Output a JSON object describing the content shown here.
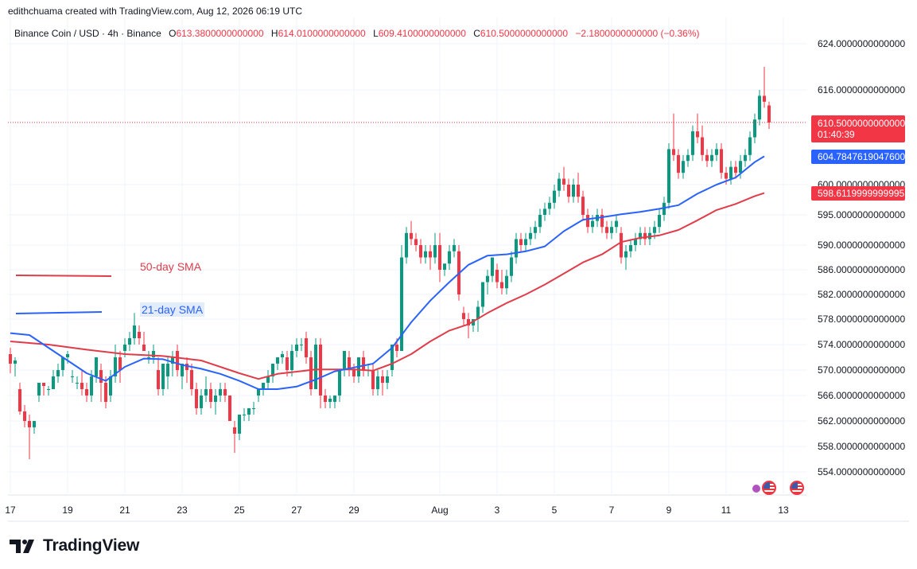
{
  "header": {
    "credit": "edithchuama created with TradingView.com, Aug 12, 2026 06:19 UTC"
  },
  "ohlc": {
    "symbol": "Binance Coin / USD · 4h · Binance",
    "open_label": "O",
    "open": "613.3800000000000",
    "high_label": "H",
    "high": "614.0100000000000",
    "low_label": "L",
    "low": "609.4100000000000",
    "close_label": "C",
    "close": "610.5000000000000",
    "change": "−2.1800000000000 (−0.36%)"
  },
  "legend": {
    "sma50_label": "50-day SMA",
    "sma21_label": "21-day SMA"
  },
  "price_tags": {
    "last_price": "610.5000000000000",
    "countdown": "01:40:39",
    "sma21_value": "604.7847619047600",
    "sma50_value": "598.6119999999995"
  },
  "branding": {
    "logo_text": "TradingView"
  },
  "colors": {
    "up": "#089981",
    "down": "#f23645",
    "sma21": "#2962ff",
    "sma50": "#e03c4a",
    "grid": "#f0f3fa",
    "last_price_line": "#f23645"
  },
  "icons": [
    "us-flag-icon",
    "us-flag-icon",
    "tradingview-logo-icon"
  ],
  "chart_data": {
    "type": "candlestick",
    "y_ticks": [
      {
        "value": 624,
        "label": "624.0000000000000"
      },
      {
        "value": 616,
        "label": "616.0000000000000"
      },
      {
        "value": 600,
        "label": "600.0000000000000"
      },
      {
        "value": 595,
        "label": "595.0000000000000"
      },
      {
        "value": 590,
        "label": "590.0000000000000"
      },
      {
        "value": 586,
        "label": "586.0000000000000"
      },
      {
        "value": 582,
        "label": "582.0000000000000"
      },
      {
        "value": 578,
        "label": "578.0000000000000"
      },
      {
        "value": 574,
        "label": "574.0000000000000"
      },
      {
        "value": 570,
        "label": "570.0000000000000"
      },
      {
        "value": 566,
        "label": "566.0000000000000"
      },
      {
        "value": 562,
        "label": "562.0000000000000"
      },
      {
        "value": 558,
        "label": "558.0000000000000"
      },
      {
        "value": 554,
        "label": "554.0000000000000"
      }
    ],
    "x_ticks": [
      {
        "index": 0,
        "label": "17"
      },
      {
        "index": 12,
        "label": "19"
      },
      {
        "index": 24,
        "label": "21"
      },
      {
        "index": 36,
        "label": "23"
      },
      {
        "index": 48,
        "label": "25"
      },
      {
        "index": 60,
        "label": "27"
      },
      {
        "index": 72,
        "label": "29"
      },
      {
        "index": 90,
        "label": "Aug"
      },
      {
        "index": 102,
        "label": "3"
      },
      {
        "index": 114,
        "label": "5"
      },
      {
        "index": 126,
        "label": "7"
      },
      {
        "index": 138,
        "label": "9"
      },
      {
        "index": 150,
        "label": "11"
      },
      {
        "index": 162,
        "label": "13"
      }
    ],
    "candles": [
      [
        572.5,
        573.5,
        569.5,
        571
      ],
      [
        571,
        572,
        569,
        571.5
      ],
      [
        567,
        568,
        563,
        563.5
      ],
      [
        563.5,
        564.5,
        561,
        562
      ],
      [
        562,
        563,
        556,
        561
      ],
      [
        561,
        562,
        560,
        562
      ],
      [
        566,
        568,
        565,
        568
      ],
      [
        568,
        568,
        566,
        567.5
      ],
      [
        567,
        567.5,
        566,
        567
      ],
      [
        567,
        570,
        567,
        569
      ],
      [
        569,
        571,
        568,
        570
      ],
      [
        570,
        572,
        569,
        572
      ],
      [
        572,
        573,
        571,
        572.5
      ],
      [
        569,
        570,
        568,
        569
      ],
      [
        568,
        569,
        567,
        568
      ],
      [
        568,
        570,
        566,
        567
      ],
      [
        567,
        568,
        565,
        566
      ],
      [
        566,
        570,
        565,
        569
      ],
      [
        569,
        572,
        568,
        572
      ],
      [
        570,
        571,
        565,
        568
      ],
      [
        568,
        569,
        564,
        565
      ],
      [
        566,
        570,
        565,
        569
      ],
      [
        569,
        574,
        568,
        572
      ],
      [
        572,
        573,
        568,
        570
      ],
      [
        573,
        575,
        572,
        574
      ],
      [
        574,
        576,
        573,
        575
      ],
      [
        575,
        579,
        574,
        577
      ],
      [
        576,
        577,
        574,
        575
      ],
      [
        574,
        576,
        573,
        573
      ],
      [
        572,
        573,
        571,
        572
      ],
      [
        572,
        574,
        571,
        573
      ],
      [
        570,
        572,
        566,
        567
      ],
      [
        567,
        571,
        566,
        571
      ],
      [
        569,
        572,
        567,
        571
      ],
      [
        571,
        573,
        569,
        572
      ],
      [
        573,
        574,
        569,
        570
      ],
      [
        569,
        571,
        567,
        571
      ],
      [
        571,
        572,
        568,
        570
      ],
      [
        570,
        571,
        566,
        567
      ],
      [
        567,
        568,
        563,
        564
      ],
      [
        564,
        567,
        563,
        566
      ],
      [
        566,
        569,
        565,
        567
      ],
      [
        567,
        568,
        564,
        565
      ],
      [
        565,
        567,
        563,
        566
      ],
      [
        566,
        568,
        565,
        567
      ],
      [
        567,
        568,
        565,
        566
      ],
      [
        566,
        566,
        562,
        562
      ],
      [
        561,
        562,
        557,
        560
      ],
      [
        560,
        563,
        559,
        563
      ],
      [
        563,
        564,
        562,
        563
      ],
      [
        563,
        564,
        562,
        564
      ],
      [
        564,
        565,
        563,
        564
      ],
      [
        566,
        567,
        565,
        567
      ],
      [
        567,
        568,
        566,
        568
      ],
      [
        568,
        570,
        567,
        569
      ],
      [
        569,
        571,
        568,
        571
      ],
      [
        571,
        572,
        570,
        572
      ],
      [
        572,
        573,
        571,
        572.5
      ],
      [
        572,
        573,
        569,
        570
      ],
      [
        570,
        574,
        569,
        573
      ],
      [
        573,
        575,
        572,
        574
      ],
      [
        574,
        575,
        573,
        574
      ],
      [
        575,
        576,
        571,
        572
      ],
      [
        572,
        573,
        566,
        567
      ],
      [
        567,
        575,
        567,
        574
      ],
      [
        574,
        575,
        564,
        566
      ],
      [
        566,
        567,
        564,
        565
      ],
      [
        565,
        566,
        564,
        565.5
      ],
      [
        565,
        566,
        564,
        566
      ],
      [
        566,
        570,
        565,
        570
      ],
      [
        570,
        573,
        569,
        573
      ],
      [
        572,
        573,
        569,
        570
      ],
      [
        570,
        571,
        568,
        569
      ],
      [
        569,
        572,
        568,
        572
      ],
      [
        572,
        573,
        569,
        570
      ],
      [
        570,
        571,
        569,
        570
      ],
      [
        570,
        571,
        566,
        567
      ],
      [
        567,
        570,
        566,
        569
      ],
      [
        569,
        570,
        566,
        568
      ],
      [
        568,
        570,
        567,
        569
      ],
      [
        570,
        574,
        569,
        574
      ],
      [
        574,
        575,
        572,
        573
      ],
      [
        573,
        590,
        573,
        588
      ],
      [
        588,
        593,
        587,
        592
      ],
      [
        592,
        594,
        590,
        591
      ],
      [
        591,
        592,
        589,
        590
      ],
      [
        590,
        591,
        587,
        588
      ],
      [
        588,
        590,
        587,
        589
      ],
      [
        589,
        590,
        586,
        588
      ],
      [
        588,
        592,
        587,
        590
      ],
      [
        590,
        592,
        584,
        586
      ],
      [
        586,
        587,
        585,
        587
      ],
      [
        587,
        590,
        586,
        589
      ],
      [
        589,
        591,
        588,
        590
      ],
      [
        589,
        590,
        581,
        582
      ],
      [
        579,
        580,
        577,
        578
      ],
      [
        578,
        579,
        575,
        577
      ],
      [
        577,
        578,
        576,
        578
      ],
      [
        578,
        581,
        576,
        580
      ],
      [
        580,
        584,
        579,
        584
      ],
      [
        584,
        586,
        582,
        585
      ],
      [
        585,
        588,
        584,
        588
      ],
      [
        586,
        587,
        583,
        584
      ],
      [
        584,
        586,
        582,
        583
      ],
      [
        583,
        586,
        582,
        585
      ],
      [
        585,
        589,
        584,
        588
      ],
      [
        588,
        592,
        587,
        591
      ],
      [
        591,
        592,
        589,
        590
      ],
      [
        590,
        592,
        589,
        591
      ],
      [
        591,
        593,
        590,
        592
      ],
      [
        592,
        594,
        591,
        593
      ],
      [
        593,
        596,
        592,
        595
      ],
      [
        595,
        597,
        594,
        596
      ],
      [
        596,
        598,
        595,
        597
      ],
      [
        597,
        600,
        596,
        599
      ],
      [
        599,
        602,
        598,
        601
      ],
      [
        601,
        603,
        599,
        600
      ],
      [
        600,
        601,
        597,
        598
      ],
      [
        598,
        601,
        597,
        600
      ],
      [
        600,
        602,
        597,
        598
      ],
      [
        598,
        599,
        594,
        595
      ],
      [
        595,
        596,
        592,
        593
      ],
      [
        593,
        595,
        592,
        594
      ],
      [
        594,
        596,
        593,
        595
      ],
      [
        595,
        596,
        592,
        593
      ],
      [
        593,
        594,
        591,
        592
      ],
      [
        592,
        594,
        591,
        593
      ],
      [
        593,
        595,
        592,
        594
      ],
      [
        592,
        593,
        587,
        588
      ],
      [
        588,
        590,
        586,
        589
      ],
      [
        589,
        591,
        588,
        590
      ],
      [
        590,
        592,
        589,
        591
      ],
      [
        591,
        593,
        590,
        592
      ],
      [
        592,
        593,
        590,
        591
      ],
      [
        591,
        593,
        590,
        592
      ],
      [
        592,
        594,
        591,
        593
      ],
      [
        593,
        596,
        592,
        595
      ],
      [
        595,
        598,
        594,
        597
      ],
      [
        597,
        607,
        596,
        606
      ],
      [
        606,
        612,
        604,
        605
      ],
      [
        605,
        606,
        601,
        602
      ],
      [
        602,
        605,
        601,
        604
      ],
      [
        604,
        606,
        603,
        605
      ],
      [
        605,
        610,
        604,
        609
      ],
      [
        609,
        612,
        607,
        608
      ],
      [
        608,
        610,
        604,
        605
      ],
      [
        605,
        606,
        603,
        604
      ],
      [
        604,
        606,
        603,
        605
      ],
      [
        605,
        607,
        604,
        606
      ],
      [
        606,
        607,
        601,
        602
      ],
      [
        602,
        603,
        600,
        601
      ],
      [
        601,
        604,
        600,
        603
      ],
      [
        603,
        604,
        601,
        602
      ],
      [
        602,
        605,
        601,
        604
      ],
      [
        604,
        606,
        603,
        605
      ],
      [
        605,
        609,
        604,
        608
      ],
      [
        608,
        612,
        607,
        611
      ],
      [
        611,
        616,
        610,
        615
      ],
      [
        615,
        620,
        613,
        614
      ],
      [
        613.38,
        614.01,
        609.41,
        610.5
      ]
    ],
    "sma21": [
      [
        0,
        575.8
      ],
      [
        4,
        575.5
      ],
      [
        8,
        573.5
      ],
      [
        12,
        571.5
      ],
      [
        16,
        569.5
      ],
      [
        20,
        568.3
      ],
      [
        24,
        570.5
      ],
      [
        28,
        571.8
      ],
      [
        32,
        571.7
      ],
      [
        36,
        570.8
      ],
      [
        40,
        570.2
      ],
      [
        44,
        569.4
      ],
      [
        48,
        568.3
      ],
      [
        52,
        567
      ],
      [
        56,
        567
      ],
      [
        60,
        567.4
      ],
      [
        64,
        568.5
      ],
      [
        68,
        569.8
      ],
      [
        72,
        570.4
      ],
      [
        76,
        571
      ],
      [
        80,
        573.5
      ],
      [
        84,
        577.5
      ],
      [
        88,
        581
      ],
      [
        92,
        584
      ],
      [
        96,
        586.8
      ],
      [
        100,
        588.3
      ],
      [
        104,
        588.5
      ],
      [
        108,
        589
      ],
      [
        112,
        589.8
      ],
      [
        116,
        592.3
      ],
      [
        120,
        594.2
      ],
      [
        124,
        594.6
      ],
      [
        128,
        595.1
      ],
      [
        132,
        595.5
      ],
      [
        136,
        596
      ],
      [
        140,
        596.6
      ],
      [
        144,
        598.5
      ],
      [
        148,
        600
      ],
      [
        152,
        601.2
      ],
      [
        156,
        603.8
      ],
      [
        158,
        604.78
      ]
    ],
    "sma50": [
      [
        0,
        574.5
      ],
      [
        8,
        574
      ],
      [
        16,
        573.2
      ],
      [
        24,
        572.5
      ],
      [
        32,
        572.2
      ],
      [
        40,
        571.5
      ],
      [
        48,
        569.5
      ],
      [
        52,
        568.6
      ],
      [
        56,
        569.4
      ],
      [
        64,
        570.1
      ],
      [
        72,
        570.1
      ],
      [
        76,
        569.9
      ],
      [
        80,
        571
      ],
      [
        84,
        572.5
      ],
      [
        88,
        574.5
      ],
      [
        92,
        576.2
      ],
      [
        96,
        577.2
      ],
      [
        100,
        579
      ],
      [
        104,
        580.6
      ],
      [
        108,
        582
      ],
      [
        112,
        583.6
      ],
      [
        116,
        585.4
      ],
      [
        120,
        587.2
      ],
      [
        124,
        588.5
      ],
      [
        128,
        590.5
      ],
      [
        132,
        591.2
      ],
      [
        136,
        591.6
      ],
      [
        140,
        592.5
      ],
      [
        144,
        594.1
      ],
      [
        148,
        595.8
      ],
      [
        152,
        596.8
      ],
      [
        156,
        598.1
      ],
      [
        158,
        598.61
      ]
    ],
    "last_price": 610.5
  }
}
